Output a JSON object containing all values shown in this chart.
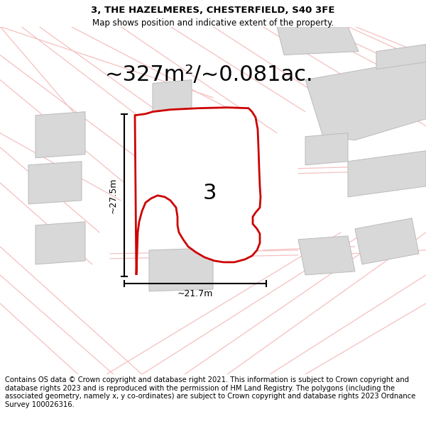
{
  "title_line1": "3, THE HAZELMERES, CHESTERFIELD, S40 3FE",
  "title_line2": "Map shows position and indicative extent of the property.",
  "area_text": "~327m²/~0.081ac.",
  "label_width": "~21.7m",
  "label_height": "~27.5m",
  "property_number": "3",
  "footer_text": "Contains OS data © Crown copyright and database right 2021. This information is subject to Crown copyright and database rights 2023 and is reproduced with the permission of HM Land Registry. The polygons (including the associated geometry, namely x, y co-ordinates) are subject to Crown copyright and database rights 2023 Ordnance Survey 100026316.",
  "bg_color": "#ffffff",
  "road_color": "#f5c0c0",
  "building_color": "#d8d8d8",
  "building_edge": "#bbbbbb",
  "property_color": "#ffffff",
  "property_edge": "#cc0000",
  "dim_color": "#000000",
  "text_color": "#000000",
  "title_fontsize": 9.5,
  "subtitle_fontsize": 8.5,
  "area_fontsize": 22,
  "dim_fontsize": 9,
  "number_fontsize": 22,
  "footer_fontsize": 7.2
}
